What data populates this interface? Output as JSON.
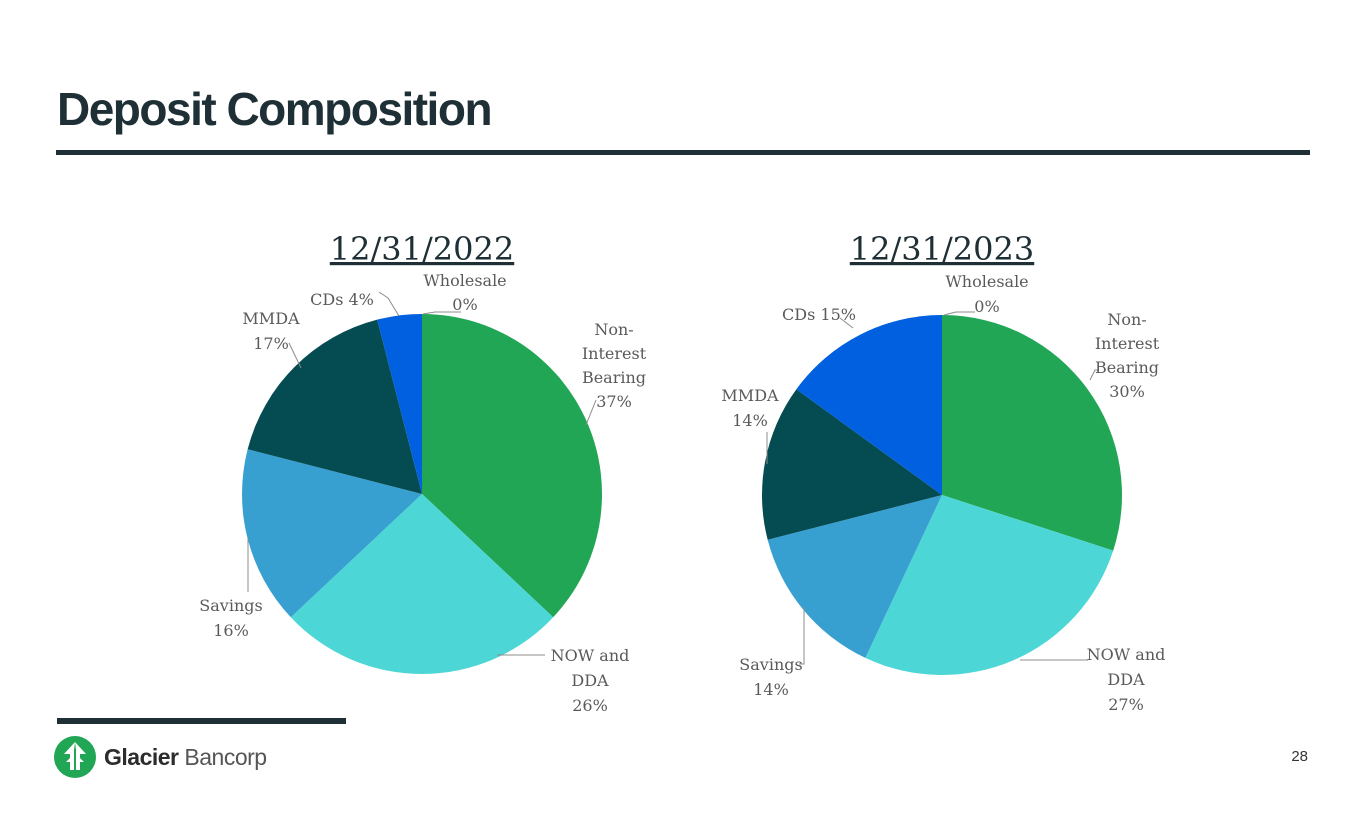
{
  "page": {
    "title": "Deposit Composition",
    "page_number": "28",
    "logo": {
      "bold": "Glacier",
      "light": "Bancorp",
      "icon": "glacier-tree-logo"
    }
  },
  "colors": {
    "Non-Interest Bearing": "#21a656",
    "NOW and DDA": "#4dd6d6",
    "Savings": "#38a0d0",
    "MMDA": "#044b52",
    "CDs": "#0060e0",
    "Wholesale": "#1e2f36"
  },
  "chart_data": [
    {
      "type": "pie",
      "title": "12/31/2022",
      "categories": [
        "Non-Interest Bearing",
        "NOW and DDA",
        "Savings",
        "MMDA",
        "CDs",
        "Wholesale"
      ],
      "values": [
        37,
        26,
        16,
        17,
        4,
        0
      ],
      "labels": [
        [
          "Non-",
          "Interest",
          "Bearing",
          "37%"
        ],
        [
          "NOW and",
          "DDA",
          "26%"
        ],
        [
          "Savings",
          "16%"
        ],
        [
          "MMDA",
          "17%"
        ],
        [
          "CDs 4%"
        ],
        [
          "Wholesale",
          "0%"
        ]
      ]
    },
    {
      "type": "pie",
      "title": "12/31/2023",
      "categories": [
        "Non-Interest Bearing",
        "NOW and DDA",
        "Savings",
        "MMDA",
        "CDs",
        "Wholesale"
      ],
      "values": [
        30,
        27,
        14,
        14,
        15,
        0
      ],
      "labels": [
        [
          "Non-",
          "Interest",
          "Bearing",
          "30%"
        ],
        [
          "NOW and",
          "DDA",
          "27%"
        ],
        [
          "Savings",
          "14%"
        ],
        [
          "MMDA",
          "14%"
        ],
        [
          "CDs 15%"
        ],
        [
          "Wholesale",
          "0%"
        ]
      ]
    }
  ]
}
